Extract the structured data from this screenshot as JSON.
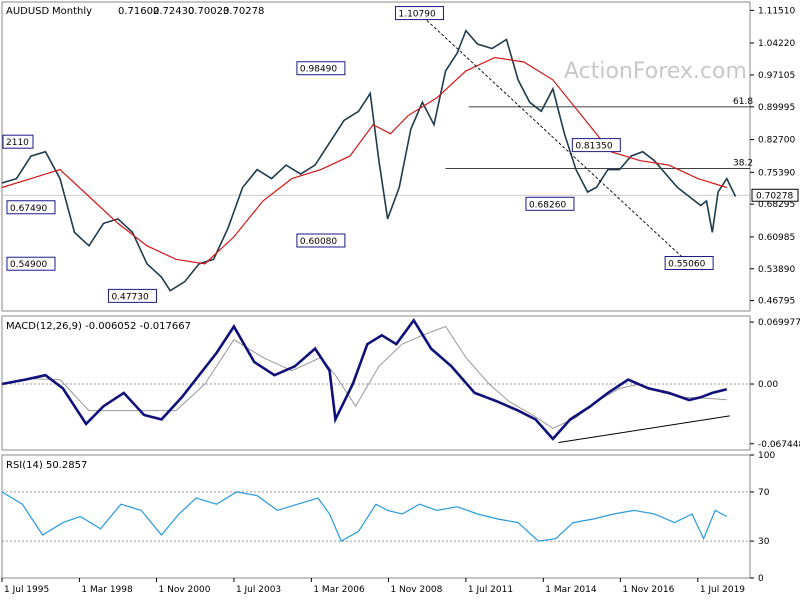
{
  "chart_data": {
    "type": "line",
    "symbol": "AUDUSD",
    "timeframe": "Monthly",
    "ohlc": [
      "0.71602",
      "0.72430",
      "0.70023",
      "0.70278"
    ],
    "watermark": "ActionForex.com",
    "price_axis": {
      "range": [
        0.4447,
        1.1337
      ],
      "ticks": [
        "1.11510",
        "1.04220",
        "0.97105",
        "0.89995",
        "0.82700",
        "0.75390",
        "0.68295",
        "0.60985",
        "0.53890",
        "0.46795"
      ],
      "tick_values": [
        1.1151,
        1.0422,
        0.97105,
        0.89995,
        0.827,
        0.7539,
        0.68295,
        0.60985,
        0.5389,
        0.46795
      ],
      "current_price": "0.70278",
      "current_value": 0.70278
    },
    "x_axis": {
      "labels": [
        "1 Jul 1995",
        "1 Mar 1998",
        "1 Nov 2000",
        "1 Jul 2003",
        "1 Mar 2006",
        "1 Nov 2008",
        "1 Jul 2011",
        "1 Mar 2014",
        "1 Nov 2016",
        "1 Jul 2019"
      ],
      "label_years": [
        1995.5,
        1998.17,
        2000.83,
        2003.5,
        2006.17,
        2008.83,
        2011.5,
        2014.17,
        2016.83,
        2019.5
      ]
    },
    "price_series": {
      "name": "",
      "x": [
        1995.5,
        1996.0,
        1996.5,
        1997.0,
        1997.5,
        1998.0,
        1998.5,
        1999.0,
        1999.5,
        2000.0,
        2000.5,
        2001.0,
        2001.3,
        2001.8,
        2002.3,
        2002.8,
        2003.3,
        2003.8,
        2004.3,
        2004.8,
        2005.3,
        2005.8,
        2006.3,
        2006.8,
        2007.3,
        2007.8,
        2008.2,
        2008.5,
        2008.8,
        2009.2,
        2009.6,
        2010.0,
        2010.4,
        2010.8,
        2011.2,
        2011.5,
        2011.9,
        2012.4,
        2012.9,
        2013.3,
        2013.7,
        2014.1,
        2014.5,
        2014.9,
        2015.3,
        2015.7,
        2016.0,
        2016.4,
        2016.8,
        2017.2,
        2017.6,
        2018.0,
        2018.4,
        2018.8,
        2019.2,
        2019.6,
        2019.8,
        2020.0,
        2020.2,
        2020.5,
        2020.8
      ],
      "y": [
        0.73,
        0.74,
        0.79,
        0.8,
        0.74,
        0.62,
        0.59,
        0.64,
        0.65,
        0.62,
        0.55,
        0.52,
        0.49,
        0.51,
        0.55,
        0.56,
        0.63,
        0.72,
        0.76,
        0.74,
        0.77,
        0.75,
        0.77,
        0.82,
        0.87,
        0.89,
        0.93,
        0.78,
        0.65,
        0.72,
        0.85,
        0.91,
        0.86,
        0.98,
        1.02,
        1.07,
        1.04,
        1.03,
        1.05,
        0.96,
        0.91,
        0.89,
        0.94,
        0.84,
        0.76,
        0.71,
        0.72,
        0.76,
        0.76,
        0.79,
        0.8,
        0.78,
        0.75,
        0.72,
        0.7,
        0.68,
        0.69,
        0.62,
        0.71,
        0.74,
        0.7
      ],
      "color": "#1f3b4d"
    },
    "moving_average": {
      "name": "",
      "x": [
        1995.5,
        1996.5,
        1997.5,
        1998.5,
        1999.5,
        2000.5,
        2001.5,
        2002.5,
        2003.5,
        2004.5,
        2005.5,
        2006.5,
        2007.5,
        2008.3,
        2008.9,
        2009.5,
        2010.5,
        2011.5,
        2012.5,
        2013.5,
        2014.5,
        2015.5,
        2016.5,
        2017.5,
        2018.5,
        2019.5,
        2020.5
      ],
      "y": [
        0.72,
        0.74,
        0.76,
        0.7,
        0.64,
        0.59,
        0.56,
        0.55,
        0.61,
        0.69,
        0.74,
        0.76,
        0.79,
        0.86,
        0.84,
        0.88,
        0.92,
        0.98,
        1.01,
        1.0,
        0.96,
        0.88,
        0.8,
        0.78,
        0.77,
        0.74,
        0.72
      ],
      "color": "#d01818"
    },
    "annotations": [
      {
        "text": "1.10790",
        "x": 2009.9,
        "y": 1.1079
      },
      {
        "text": "0.98490",
        "x": 2006.5,
        "y": 0.9849
      },
      {
        "text": "0.81350",
        "x": 2016.0,
        "y": 0.8135
      },
      {
        "text": "0.68260",
        "x": 2014.4,
        "y": 0.6826
      },
      {
        "text": "0.60080",
        "x": 2006.5,
        "y": 0.6008
      },
      {
        "text": "0.55060",
        "x": 2019.2,
        "y": 0.5506
      },
      {
        "text": "0.54900",
        "x": 1996.5,
        "y": 0.549
      },
      {
        "text": "0.47730",
        "x": 2000.0,
        "y": 0.4773
      },
      {
        "text": "0.67490",
        "x": 1996.5,
        "y": 0.6749
      },
      {
        "text": "2110",
        "x": 1995.8,
        "y": 0.8211
      }
    ],
    "fib_levels": [
      {
        "label": "61.8",
        "value": 0.8998
      },
      {
        "label": "38.2",
        "value": 0.7625
      }
    ],
    "macd": {
      "label": "MACD(12,26,9) -0.006052 -0.017667",
      "range": [
        -0.0745,
        0.0768
      ],
      "ticks": [
        "0.069977",
        "0.00",
        "-0.067448"
      ],
      "tick_values": [
        0.069977,
        0.0,
        -0.067448
      ],
      "current": "0.00",
      "x": [
        1995.5,
        1996.3,
        1997.0,
        1997.6,
        1998.4,
        1999.0,
        1999.7,
        2000.4,
        2001.0,
        2001.7,
        2002.3,
        2002.9,
        2003.5,
        2004.2,
        2004.9,
        2005.6,
        2006.3,
        2006.8,
        2007.0,
        2007.6,
        2008.1,
        2008.6,
        2009.1,
        2009.7,
        2010.3,
        2011.0,
        2011.8,
        2012.6,
        2013.3,
        2013.9,
        2014.5,
        2015.1,
        2015.8,
        2016.4,
        2017.1,
        2017.8,
        2018.5,
        2019.2,
        2019.6,
        2020.0,
        2020.5
      ],
      "y": [
        0.0,
        0.005,
        0.01,
        -0.005,
        -0.045,
        -0.025,
        -0.01,
        -0.035,
        -0.04,
        -0.015,
        0.01,
        0.035,
        0.065,
        0.025,
        0.01,
        0.02,
        0.04,
        0.015,
        -0.04,
        0.0,
        0.045,
        0.055,
        0.045,
        0.072,
        0.04,
        0.02,
        -0.01,
        -0.02,
        -0.03,
        -0.04,
        -0.062,
        -0.04,
        -0.025,
        -0.01,
        0.005,
        -0.005,
        -0.01,
        -0.018,
        -0.015,
        -0.01,
        -0.006
      ],
      "signal_x": [
        1995.5,
        1996.5,
        1997.5,
        1998.5,
        1999.5,
        2000.5,
        2001.5,
        2002.5,
        2003.5,
        2004.5,
        2005.5,
        2006.5,
        2007.0,
        2007.7,
        2008.5,
        2009.3,
        2010.0,
        2010.8,
        2011.5,
        2012.3,
        2013.0,
        2013.8,
        2014.5,
        2015.3,
        2016.0,
        2016.8,
        2017.5,
        2018.3,
        2019.0,
        2019.8,
        2020.5
      ],
      "signal_y": [
        0.0,
        0.006,
        0.005,
        -0.03,
        -0.03,
        -0.03,
        -0.03,
        0.0,
        0.05,
        0.03,
        0.015,
        0.03,
        0.01,
        -0.025,
        0.02,
        0.045,
        0.055,
        0.065,
        0.03,
        0.0,
        -0.02,
        -0.035,
        -0.05,
        -0.038,
        -0.02,
        -0.005,
        0.0,
        -0.01,
        -0.015,
        -0.016,
        -0.0177
      ],
      "trendline": [
        [
          2014.7,
          -0.066
        ],
        [
          2020.6,
          -0.036
        ]
      ]
    },
    "rsi": {
      "label": "RSI(14) 50.2857",
      "range": [
        0,
        100
      ],
      "ticks": [
        "100",
        "70",
        "30",
        "0"
      ],
      "tick_values": [
        100,
        70,
        30,
        0
      ],
      "x": [
        1995.5,
        1996.2,
        1996.9,
        1997.6,
        1998.2,
        1998.9,
        1999.6,
        2000.3,
        2001.0,
        2001.6,
        2002.2,
        2002.9,
        2003.6,
        2004.3,
        2005.0,
        2005.7,
        2006.4,
        2006.8,
        2007.2,
        2007.8,
        2008.4,
        2008.8,
        2009.3,
        2009.9,
        2010.5,
        2011.2,
        2011.9,
        2012.6,
        2013.3,
        2014.0,
        2014.6,
        2015.2,
        2015.9,
        2016.6,
        2017.3,
        2018.0,
        2018.7,
        2019.3,
        2019.7,
        2020.1,
        2020.5
      ],
      "y": [
        70,
        60,
        35,
        45,
        50,
        40,
        60,
        55,
        35,
        52,
        65,
        60,
        70,
        67,
        55,
        60,
        65,
        52,
        30,
        38,
        60,
        55,
        52,
        60,
        55,
        58,
        52,
        48,
        45,
        30,
        32,
        45,
        48,
        52,
        55,
        52,
        45,
        52,
        32,
        55,
        50
      ]
    }
  }
}
